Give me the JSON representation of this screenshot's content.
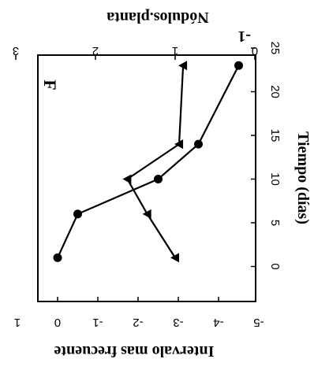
{
  "chart_data": {
    "type": "line",
    "orientation": "rotated 90 degrees clockwise",
    "panel_label": "F",
    "xlabel": "Tiempo (días)",
    "x_ticks": [
      "0",
      "5",
      "10",
      "15",
      "20",
      "25"
    ],
    "xlim": [
      -3.5,
      25
    ],
    "ylabel_left": "Intervalo mas frecuente",
    "y_left_ticks": [
      "1",
      "0",
      "-1",
      "-2",
      "-3",
      "-4",
      "-5"
    ],
    "ylim_left": [
      1,
      -5
    ],
    "ylabel_right": "Nódulos.planta",
    "ylabel_right_superscript": "-1",
    "y_right_ticks": [
      "3",
      "2",
      "1",
      "0"
    ],
    "ylim_right": [
      3,
      0
    ],
    "grid": false,
    "series": [
      {
        "axis": "left",
        "marker": "circle",
        "x": [
          1,
          6,
          10,
          14,
          23
        ],
        "y": [
          0,
          -0.5,
          -2.5,
          -3.5,
          -4.5
        ]
      },
      {
        "axis": "right",
        "marker": "triangle",
        "x": [
          1,
          6,
          10,
          14,
          23
        ],
        "y": [
          1.0,
          1.35,
          1.6,
          0.95,
          0.9
        ]
      }
    ]
  }
}
